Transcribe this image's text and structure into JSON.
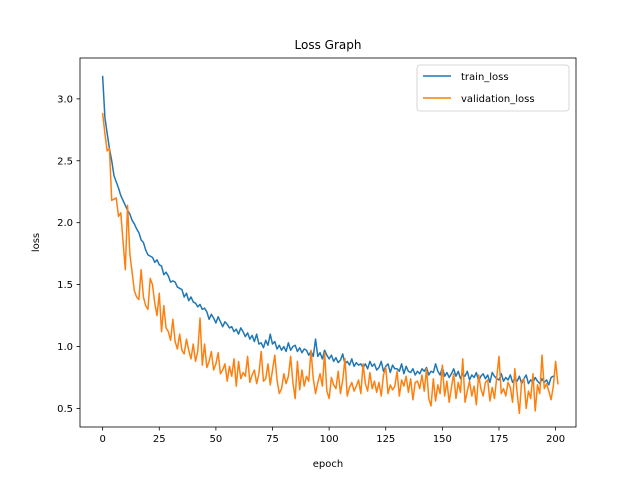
{
  "chart_data": {
    "type": "line",
    "title": "Loss Graph",
    "xlabel": "epoch",
    "ylabel": "loss",
    "xlim": [
      -10,
      209
    ],
    "ylim": [
      0.35,
      3.33
    ],
    "xticks": [
      0,
      25,
      50,
      75,
      100,
      125,
      150,
      175,
      200
    ],
    "yticks": [
      0.5,
      1.0,
      1.5,
      2.0,
      2.5,
      3.0
    ],
    "xtick_labels": [
      "0",
      "25",
      "50",
      "75",
      "100",
      "125",
      "150",
      "175",
      "200"
    ],
    "ytick_labels": [
      "0.5",
      "1.0",
      "1.5",
      "2.0",
      "2.5",
      "3.0"
    ],
    "grid": false,
    "legend_position": "top-right",
    "series": [
      {
        "name": "train_loss",
        "color": "#1f77b4",
        "values": [
          3.18,
          2.85,
          2.72,
          2.6,
          2.5,
          2.38,
          2.33,
          2.28,
          2.22,
          2.18,
          2.14,
          2.1,
          2.07,
          2.02,
          1.99,
          1.95,
          1.92,
          1.86,
          1.84,
          1.78,
          1.74,
          1.73,
          1.72,
          1.68,
          1.7,
          1.66,
          1.65,
          1.58,
          1.6,
          1.57,
          1.52,
          1.53,
          1.52,
          1.48,
          1.47,
          1.46,
          1.4,
          1.43,
          1.37,
          1.4,
          1.36,
          1.35,
          1.32,
          1.34,
          1.3,
          1.31,
          1.28,
          1.22,
          1.26,
          1.23,
          1.19,
          1.24,
          1.2,
          1.16,
          1.2,
          1.18,
          1.15,
          1.16,
          1.12,
          1.14,
          1.1,
          1.15,
          1.12,
          1.08,
          1.11,
          1.06,
          1.09,
          1.04,
          1.1,
          1.02,
          1.03,
          0.99,
          1.05,
          1.01,
          1.1,
          1.02,
          1.04,
          0.98,
          1.01,
          0.97,
          1.0,
          0.96,
          1.03,
          0.97,
          1.0,
          1.01,
          0.96,
          0.99,
          0.95,
          0.98,
          0.97,
          0.93,
          0.96,
          0.92,
          1.06,
          0.92,
          0.95,
          0.9,
          0.97,
          0.93,
          0.9,
          0.93,
          0.88,
          0.91,
          0.87,
          0.89,
          0.94,
          0.86,
          0.88,
          0.85,
          0.9,
          0.84,
          0.87,
          0.85,
          0.86,
          0.83,
          0.86,
          0.82,
          0.88,
          0.84,
          0.86,
          0.81,
          0.83,
          0.88,
          0.8,
          0.84,
          0.86,
          0.79,
          0.85,
          0.82,
          0.82,
          0.8,
          0.86,
          0.78,
          0.84,
          0.8,
          0.79,
          0.82,
          0.77,
          0.8,
          0.78,
          0.82,
          0.8,
          0.83,
          0.77,
          0.8,
          0.79,
          0.86,
          0.8,
          0.77,
          0.83,
          0.76,
          0.79,
          0.75,
          0.78,
          0.82,
          0.76,
          0.8,
          0.74,
          0.78,
          0.76,
          0.8,
          0.73,
          0.77,
          0.75,
          0.79,
          0.72,
          0.76,
          0.78,
          0.74,
          0.77,
          0.71,
          0.79,
          0.76,
          0.74,
          0.73,
          0.78,
          0.72,
          0.75,
          0.73,
          0.77,
          0.71,
          0.74,
          0.72,
          0.76,
          0.7,
          0.74,
          0.77,
          0.7,
          0.73,
          0.71,
          0.75,
          0.72,
          0.7,
          0.74,
          0.71,
          0.73,
          0.69,
          0.75,
          0.76
        ]
      },
      {
        "name": "validation_loss",
        "color": "#ff7f0e",
        "values": [
          2.88,
          2.72,
          2.58,
          2.6,
          2.18,
          2.19,
          2.2,
          2.05,
          2.08,
          1.85,
          1.62,
          2.14,
          1.75,
          1.6,
          1.45,
          1.4,
          1.38,
          1.62,
          1.4,
          1.33,
          1.3,
          1.55,
          1.5,
          1.35,
          1.25,
          1.43,
          1.12,
          1.33,
          1.15,
          1.12,
          1.05,
          1.22,
          1.04,
          0.98,
          1.1,
          0.97,
          0.94,
          1.06,
          0.97,
          0.9,
          1.02,
          0.88,
          0.96,
          1.23,
          0.85,
          1.02,
          0.83,
          0.88,
          0.96,
          0.81,
          0.86,
          0.95,
          0.78,
          0.81,
          0.86,
          0.72,
          0.84,
          0.76,
          0.9,
          0.68,
          0.88,
          0.74,
          0.79,
          0.76,
          0.92,
          0.71,
          0.77,
          0.81,
          0.7,
          0.78,
          0.96,
          0.72,
          0.74,
          0.86,
          0.69,
          0.81,
          0.93,
          0.73,
          0.62,
          0.66,
          0.78,
          0.7,
          0.76,
          0.92,
          0.71,
          0.58,
          0.88,
          0.65,
          0.81,
          0.68,
          0.76,
          0.72,
          0.97,
          0.74,
          0.62,
          0.71,
          0.78,
          0.68,
          0.95,
          0.64,
          0.58,
          0.75,
          0.69,
          0.66,
          0.8,
          0.62,
          0.73,
          0.9,
          0.6,
          0.67,
          0.71,
          0.64,
          0.68,
          0.73,
          0.62,
          0.86,
          0.7,
          0.64,
          0.79,
          0.66,
          0.72,
          0.63,
          0.71,
          0.6,
          0.77,
          0.83,
          0.62,
          0.69,
          0.65,
          0.68,
          0.8,
          0.6,
          0.73,
          0.68,
          0.76,
          0.63,
          0.74,
          0.57,
          0.71,
          0.72,
          0.66,
          0.77,
          0.64,
          0.82,
          0.58,
          0.52,
          0.74,
          0.56,
          0.69,
          0.62,
          0.85,
          0.6,
          0.72,
          0.55,
          0.67,
          0.78,
          0.58,
          0.71,
          0.63,
          0.9,
          0.55,
          0.64,
          0.72,
          0.6,
          0.68,
          0.53,
          0.77,
          0.66,
          0.6,
          0.71,
          0.73,
          0.56,
          0.67,
          0.58,
          0.75,
          0.92,
          0.62,
          0.66,
          0.6,
          0.71,
          0.67,
          0.55,
          0.82,
          0.63,
          0.46,
          0.72,
          0.74,
          0.5,
          0.64,
          0.58,
          0.78,
          0.48,
          0.69,
          0.62,
          0.93,
          0.66,
          0.7,
          0.64,
          0.57,
          0.68,
          0.88,
          0.7
        ]
      }
    ]
  }
}
